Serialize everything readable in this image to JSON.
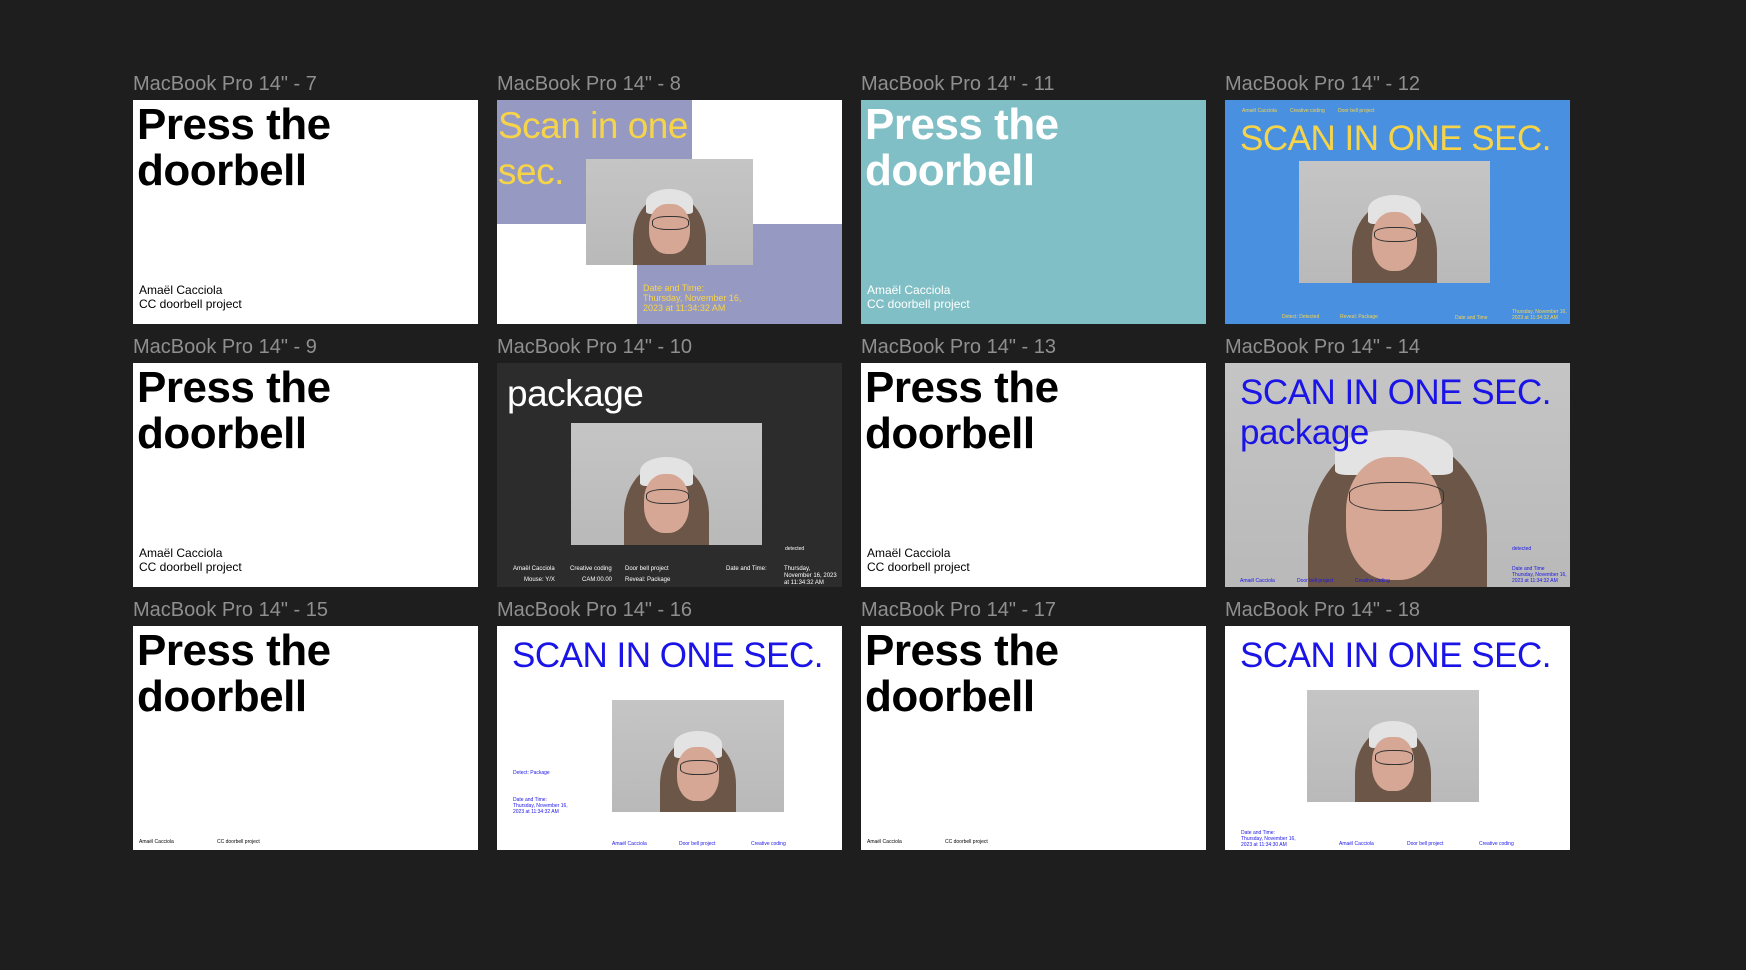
{
  "frames": {
    "f7": {
      "label": "MacBook Pro 14\" - 7",
      "headline1": "Press the",
      "headline2": "doorbell",
      "credit1": "Amaël Cacciola",
      "credit2": "CC doorbell project"
    },
    "f8": {
      "label": "MacBook Pro 14\" - 8",
      "headline1": "Scan in one",
      "headline2": "sec.",
      "date1": "Date and Time:",
      "date2": "Thursday, November 16,",
      "date3": "2023 at 11:34:32 AM"
    },
    "f11": {
      "label": "MacBook Pro 14\" - 11",
      "headline1": "Press the",
      "headline2": "doorbell",
      "credit1": "Amaël Cacciola",
      "credit2": "CC doorbell project"
    },
    "f12": {
      "label": "MacBook Pro 14\" - 12",
      "headline": "SCAN IN ONE SEC.",
      "top1": "Amaël Cacciola",
      "top2": "Creative coding",
      "top3": "Door bell project",
      "b1": "Detect: Detected",
      "b2": "Reveal: Package",
      "b3": "Date and Time",
      "b4": "Thursday, November 16,",
      "b5": "2023 at 11:34:32 AM"
    },
    "f9": {
      "label": "MacBook Pro 14\" - 9",
      "headline1": "Press the",
      "headline2": "doorbell",
      "credit1": "Amaël Cacciola",
      "credit2": "CC doorbell project"
    },
    "f10": {
      "label": "MacBook Pro 14\" - 10",
      "headline": "package",
      "side": "detected",
      "c1": "Amaël Cacciola",
      "c2": "Creative coding",
      "c3": "Door bell project",
      "c4": "Date and Time:",
      "c5": "Thursday,",
      "c6": "November 16, 2023",
      "c7": "at 11:34:32 AM",
      "r1": "Mouse: Y/X",
      "r2": "CAM:00.00",
      "r3": "Reveal: Package"
    },
    "f13": {
      "label": "MacBook Pro 14\" - 13",
      "headline1": "Press the",
      "headline2": "doorbell",
      "credit1": "Amaël Cacciola",
      "credit2": "CC doorbell project"
    },
    "f14": {
      "label": "MacBook Pro 14\" - 14",
      "headline1": "SCAN IN ONE SEC.",
      "headline2": "package",
      "side": "detected",
      "b1": "Amaël Cacciola",
      "b2": "Door bell project",
      "b3": "Creative coding",
      "d1": "Date and Time",
      "d2": "Thursday, November 16,",
      "d3": "2023 at 11:34:32 AM"
    },
    "f15": {
      "label": "MacBook Pro 14\" - 15",
      "headline1": "Press the",
      "headline2": "doorbell",
      "credit1": "Amaël Cacciola",
      "credit2": "CC doorbell project"
    },
    "f16": {
      "label": "MacBook Pro 14\" - 16",
      "headline": "SCAN IN ONE SEC.",
      "detect": "Detect: Package",
      "d1": "Date and Time:",
      "d2": "Thursday, November 16,",
      "d3": "2023 at 11:34:32 AM",
      "b1": "Amaël Cacciola",
      "b2": "Door bell project",
      "b3": "Creative coding"
    },
    "f17": {
      "label": "MacBook Pro 14\" - 17",
      "headline1": "Press the",
      "headline2": "doorbell",
      "credit1": "Amaël Cacciola",
      "credit2": "CC doorbell project"
    },
    "f18": {
      "label": "MacBook Pro 14\" - 18",
      "headline": "SCAN IN ONE SEC.",
      "d1": "Date and Time:",
      "d2": "Thursday, November 16,",
      "d3": "2023 at 11:34:30 AM",
      "b1": "Amaël Cacciola",
      "b2": "Door bell project",
      "b3": "Creative coding"
    }
  },
  "colors": {
    "canvas": "#1e1e1e",
    "label": "#8f8f8f",
    "lavender": "#9699c2",
    "yellow": "#f6d44a",
    "teal": "#80bfc5",
    "blue": "#4a90e0",
    "brand_blue": "#1a14e6",
    "dark": "#2c2c2c"
  }
}
